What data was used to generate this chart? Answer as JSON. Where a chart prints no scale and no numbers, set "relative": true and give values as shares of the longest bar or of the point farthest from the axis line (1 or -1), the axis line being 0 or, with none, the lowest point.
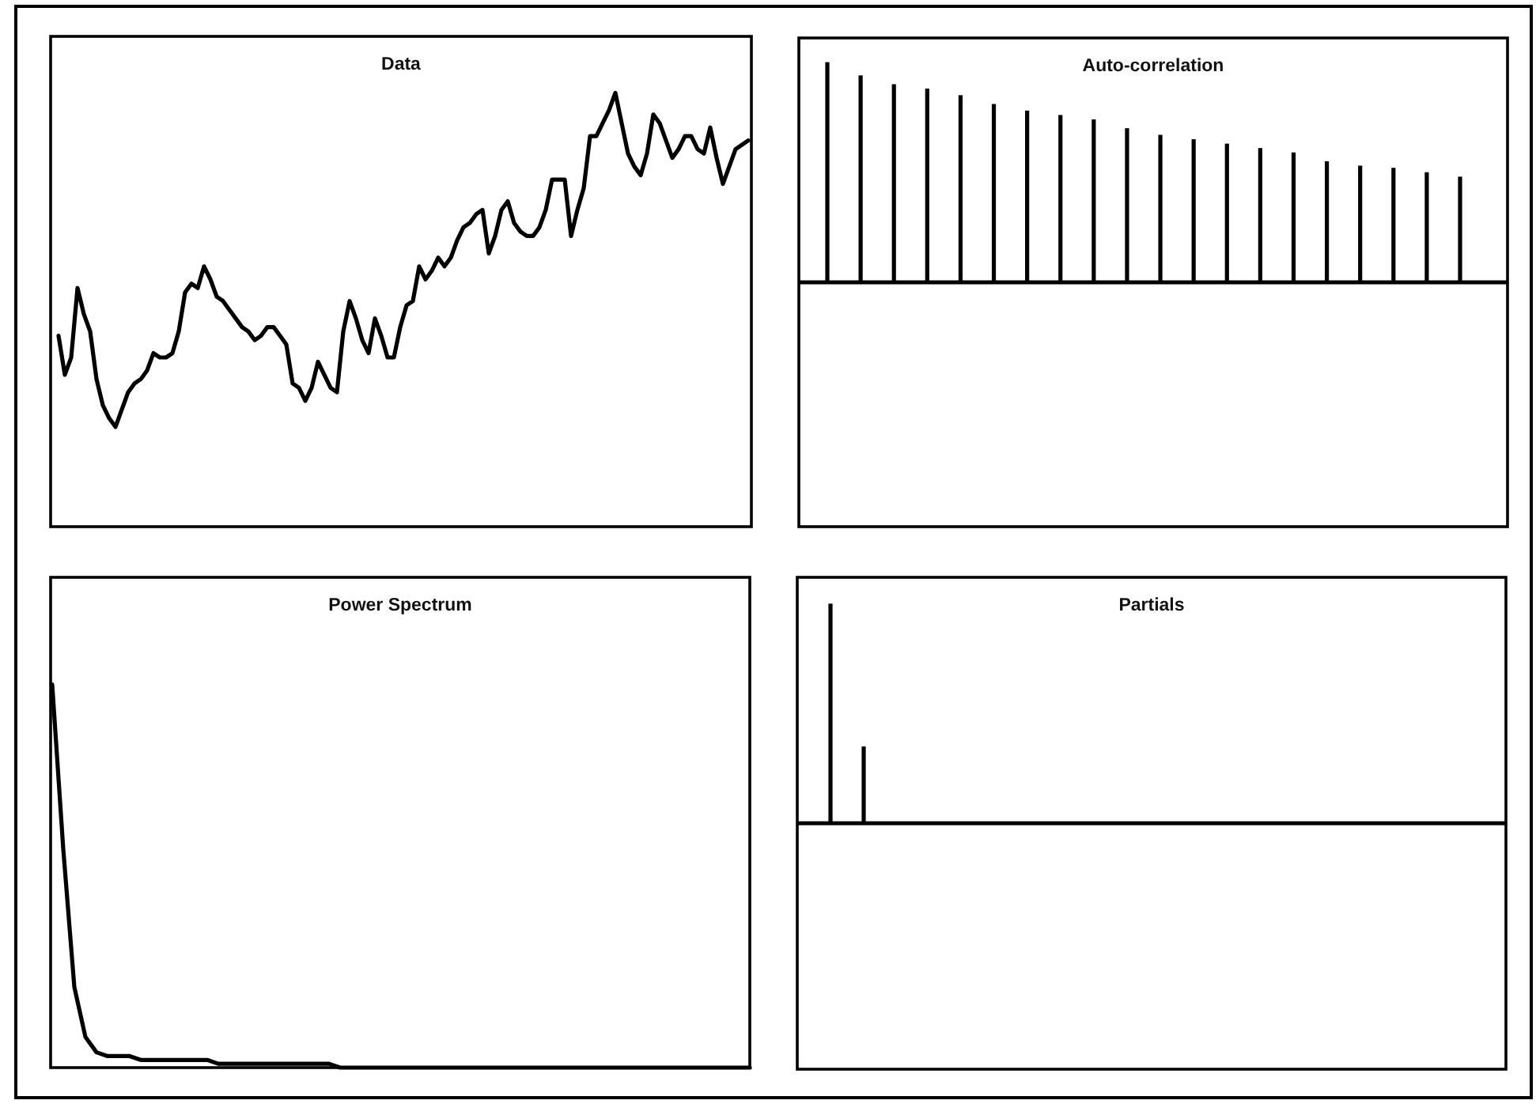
{
  "chart_data": [
    {
      "type": "line",
      "title": "Data",
      "relative": true,
      "color": "#000000",
      "categories": [
        null,
        null,
        null,
        null,
        null,
        null,
        null,
        null,
        null,
        null,
        null,
        null,
        null,
        null,
        null,
        null,
        null,
        null,
        null,
        null,
        null,
        null,
        null,
        null,
        null,
        null,
        null,
        null,
        null,
        null,
        null,
        null,
        null,
        null,
        null,
        null,
        null,
        null,
        null,
        null,
        null,
        null,
        null,
        null,
        null,
        null,
        null,
        null,
        null,
        null,
        null,
        null,
        null,
        null,
        null,
        null,
        null,
        null,
        null,
        null,
        null,
        null,
        null,
        null,
        null,
        null,
        null,
        null,
        null,
        null,
        null,
        null,
        null,
        null,
        null,
        null,
        null,
        null,
        null,
        null,
        null,
        null,
        null,
        null,
        null,
        null,
        null,
        null,
        null,
        null,
        null,
        null,
        null,
        null,
        null,
        null,
        null,
        null,
        null,
        null,
        null,
        null,
        null,
        null,
        null,
        null,
        null,
        null,
        null,
        null
      ],
      "values": [
        0.44,
        0.35,
        0.39,
        0.55,
        0.49,
        0.45,
        0.34,
        0.28,
        0.25,
        0.23,
        0.27,
        0.31,
        0.33,
        0.34,
        0.36,
        0.4,
        0.39,
        0.39,
        0.4,
        0.45,
        0.54,
        0.56,
        0.55,
        0.6,
        0.57,
        0.53,
        0.52,
        0.5,
        0.48,
        0.46,
        0.45,
        0.43,
        0.44,
        0.46,
        0.46,
        0.44,
        0.42,
        0.33,
        0.32,
        0.29,
        0.32,
        0.38,
        0.35,
        0.32,
        0.31,
        0.45,
        0.52,
        0.48,
        0.43,
        0.4,
        0.48,
        0.44,
        0.39,
        0.39,
        0.46,
        0.51,
        0.52,
        0.6,
        0.57,
        0.59,
        0.62,
        0.6,
        0.62,
        0.66,
        0.69,
        0.7,
        0.72,
        0.73,
        0.63,
        0.67,
        0.73,
        0.75,
        0.7,
        0.68,
        0.67,
        0.67,
        0.69,
        0.73,
        0.8,
        0.8,
        0.8,
        0.67,
        0.73,
        0.78,
        0.9,
        0.9,
        0.93,
        0.96,
        1,
        0.93,
        0.86,
        0.83,
        0.81,
        0.86,
        0.95,
        0.93,
        0.89,
        0.85,
        0.87,
        0.9,
        0.9,
        0.87,
        0.86,
        0.92,
        0.85,
        0.79,
        0.83,
        0.87,
        0.88,
        0.89
      ]
    },
    {
      "type": "bar",
      "title": "Auto-correlation",
      "relative": true,
      "color": "#000000",
      "categories": [
        null,
        null,
        null,
        null,
        null,
        null,
        null,
        null,
        null,
        null,
        null,
        null,
        null,
        null,
        null,
        null,
        null,
        null,
        null,
        null
      ],
      "values": [
        1,
        0.94,
        0.9,
        0.88,
        0.85,
        0.81,
        0.78,
        0.76,
        0.74,
        0.7,
        0.67,
        0.65,
        0.63,
        0.61,
        0.59,
        0.55,
        0.53,
        0.52,
        0.5,
        0.48
      ]
    },
    {
      "type": "line",
      "title": "Power Spectrum",
      "relative": true,
      "color": "#000000",
      "categories": [
        null,
        null,
        null,
        null,
        null,
        null,
        null,
        null,
        null,
        null,
        null,
        null,
        null,
        null,
        null,
        null,
        null,
        null,
        null,
        null,
        null,
        null,
        null,
        null,
        null,
        null,
        null,
        null,
        null,
        null,
        null,
        null,
        null,
        null,
        null,
        null,
        null,
        null,
        null,
        null,
        null,
        null,
        null,
        null,
        null,
        null,
        null,
        null,
        null,
        null,
        null,
        null,
        null,
        null,
        null,
        null,
        null,
        null,
        null,
        null,
        null,
        null,
        null,
        null
      ],
      "values": [
        1,
        0.57,
        0.21,
        0.08,
        0.04,
        0.03,
        0.03,
        0.03,
        0.02,
        0.02,
        0.02,
        0.02,
        0.02,
        0.02,
        0.02,
        0.01,
        0.01,
        0.01,
        0.01,
        0.01,
        0.01,
        0.01,
        0.01,
        0.01,
        0.01,
        0.01,
        0,
        0,
        0,
        0,
        0,
        0,
        0,
        0,
        0,
        0,
        0,
        0,
        0,
        0,
        0,
        0,
        0,
        0,
        0,
        0,
        0,
        0,
        0,
        0,
        0,
        0,
        0,
        0,
        0,
        0,
        0,
        0,
        0,
        0,
        0,
        0,
        0,
        0
      ]
    },
    {
      "type": "bar",
      "title": "Partials",
      "relative": true,
      "color": "#000000",
      "categories": [
        null,
        null,
        null,
        null,
        null,
        null,
        null,
        null,
        null,
        null,
        null,
        null,
        null,
        null,
        null,
        null,
        null,
        null,
        null,
        null
      ],
      "values": [
        1,
        0.35,
        null,
        null,
        null,
        null,
        null,
        null,
        null,
        null,
        null,
        null,
        null,
        null,
        null,
        null,
        null,
        null,
        null,
        null
      ]
    }
  ]
}
